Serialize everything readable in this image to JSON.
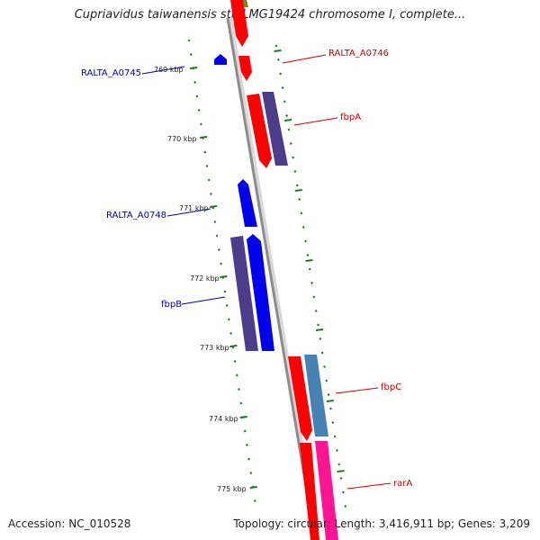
{
  "title": "Cupriavidus taiwanensis str. LMG19424 chromosome I, complete...",
  "footer": {
    "accession": "Accession: NC_010528",
    "stats": "Topology: circular; Length: 3,416,911 bp; Genes: 3,209"
  },
  "colors": {
    "backbone": "#8c8c8c",
    "tick": "#1f7a1f",
    "forward_label": "#cc0000",
    "reverse_label": "#0000aa",
    "gene_red": "#ff0000",
    "gene_purple": "#4b3d8a",
    "gene_blue": "#0000ee",
    "gene_steelblue": "#4682b4",
    "gene_pink": "#ff1493",
    "gene_olive": "#6b8e23"
  },
  "ticks": [
    {
      "label": "769 kbp"
    },
    {
      "label": "770 kbp"
    },
    {
      "label": "771 kbp"
    },
    {
      "label": "772 kbp"
    },
    {
      "label": "773 kbp"
    },
    {
      "label": "774 kbp"
    },
    {
      "label": "775 kbp"
    }
  ],
  "genes": [
    {
      "name": "RALTA_A0745",
      "strand": "reverse"
    },
    {
      "name": "RALTA_A0746",
      "strand": "forward"
    },
    {
      "name": "fbpA",
      "strand": "forward"
    },
    {
      "name": "RALTA_A0748",
      "strand": "reverse"
    },
    {
      "name": "fbpB",
      "strand": "reverse"
    },
    {
      "name": "fbpC",
      "strand": "forward"
    },
    {
      "name": "rarA",
      "strand": "forward"
    }
  ]
}
